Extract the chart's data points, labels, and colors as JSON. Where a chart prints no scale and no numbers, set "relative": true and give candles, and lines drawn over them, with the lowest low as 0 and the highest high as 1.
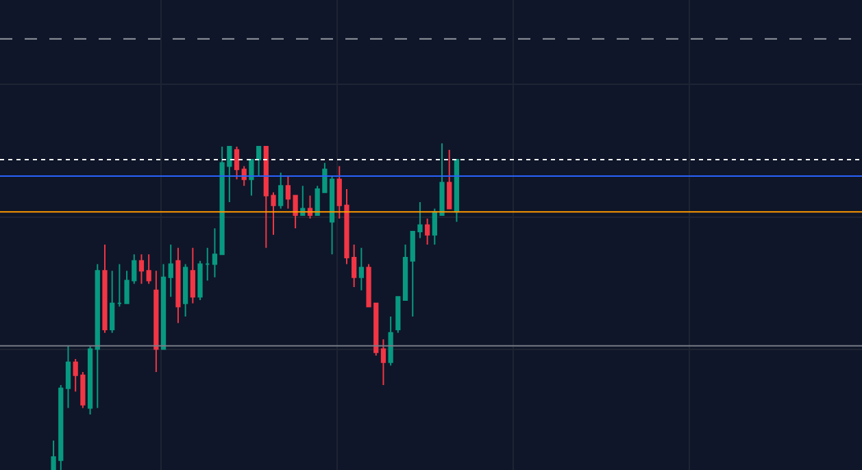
{
  "chart_data": {
    "type": "candlestick",
    "relative": true,
    "grid": true,
    "legend": false,
    "tick_labels": false,
    "categories": [
      null,
      null,
      null,
      null,
      null,
      null,
      null,
      null,
      null,
      null,
      null,
      null,
      null,
      null,
      null,
      null,
      null,
      null,
      null,
      null,
      null,
      null,
      null,
      null,
      null,
      null,
      null,
      null,
      null,
      null,
      null,
      null,
      null,
      null,
      null,
      null,
      null,
      null,
      null,
      null,
      null,
      null,
      null,
      null,
      null,
      null,
      null,
      null,
      null,
      null,
      null,
      null,
      null,
      null,
      null,
      null
    ],
    "ohlc": [
      [
        0,
        0.09,
        0,
        0.04
      ],
      [
        0.03,
        0.26,
        0,
        0.25
      ],
      [
        0.25,
        0.38,
        0.19,
        0.33
      ],
      [
        0.33,
        0.34,
        0.24,
        0.29
      ],
      [
        0.29,
        0.3,
        0.19,
        0.2
      ],
      [
        0.19,
        0.38,
        0.17,
        0.37
      ],
      [
        0.37,
        0.63,
        0.19,
        0.61
      ],
      [
        0.61,
        0.69,
        0.42,
        0.43
      ],
      [
        0.43,
        0.61,
        0.42,
        0.51
      ],
      [
        0.51,
        0.63,
        0.5,
        0.51
      ],
      [
        0.51,
        0.61,
        0.51,
        0.58
      ],
      [
        0.58,
        0.66,
        0.57,
        0.64
      ],
      [
        0.64,
        0.66,
        0.57,
        0.61
      ],
      [
        0.61,
        0.66,
        0.57,
        0.58
      ],
      [
        0.55,
        0.61,
        0.3,
        0.37
      ],
      [
        0.37,
        0.63,
        0.37,
        0.59
      ],
      [
        0.59,
        0.69,
        0.53,
        0.63
      ],
      [
        0.64,
        0.68,
        0.45,
        0.5
      ],
      [
        0.51,
        0.63,
        0.47,
        0.62
      ],
      [
        0.61,
        0.68,
        0.51,
        0.53
      ],
      [
        0.53,
        0.64,
        0.52,
        0.63
      ],
      [
        0.63,
        0.68,
        0.58,
        0.63
      ],
      [
        0.63,
        0.74,
        0.59,
        0.66
      ],
      [
        0.66,
        0.99,
        0.66,
        0.94
      ],
      [
        0.93,
        0.99,
        0.82,
        0.99
      ],
      [
        0.98,
        0.99,
        0.89,
        0.92
      ],
      [
        0.92,
        0.93,
        0.87,
        0.89
      ],
      [
        0.89,
        0.95,
        0.84,
        0.95
      ],
      [
        0.95,
        0.99,
        0.9,
        0.99
      ],
      [
        0.99,
        0.99,
        0.68,
        0.84
      ],
      [
        0.84,
        0.85,
        0.72,
        0.81
      ],
      [
        0.81,
        0.91,
        0.8,
        0.87
      ],
      [
        0.87,
        0.9,
        0.8,
        0.83
      ],
      [
        0.84,
        0.84,
        0.74,
        0.78
      ],
      [
        0.78,
        0.87,
        0.78,
        0.8
      ],
      [
        0.8,
        0.84,
        0.77,
        0.78
      ],
      [
        0.78,
        0.87,
        0.78,
        0.86
      ],
      [
        0.85,
        0.94,
        0.85,
        0.92
      ],
      [
        0.76,
        0.9,
        0.66,
        0.89
      ],
      [
        0.89,
        0.93,
        0.77,
        0.81
      ],
      [
        0.81,
        0.86,
        0.63,
        0.65
      ],
      [
        0.65,
        0.69,
        0.56,
        0.59
      ],
      [
        0.59,
        0.68,
        0.55,
        0.62
      ],
      [
        0.62,
        0.63,
        0.5,
        0.5
      ],
      [
        0.51,
        0.51,
        0.35,
        0.36
      ],
      [
        0.37,
        0.4,
        0.26,
        0.33
      ],
      [
        0.33,
        0.47,
        0.32,
        0.42
      ],
      [
        0.43,
        0.53,
        0.42,
        0.53
      ],
      [
        0.52,
        0.69,
        0.52,
        0.65
      ],
      [
        0.64,
        0.73,
        0.47,
        0.73
      ],
      [
        0.73,
        0.82,
        0.71,
        0.75
      ],
      [
        0.75,
        0.77,
        0.69,
        0.72
      ],
      [
        0.72,
        0.8,
        0.69,
        0.79
      ],
      [
        0.78,
        1,
        0.78,
        0.88
      ],
      [
        0.88,
        0.98,
        0.8,
        0.8
      ],
      [
        0.79,
        0.95,
        0.76,
        0.95
      ]
    ],
    "ref_lines": [
      {
        "axis": "y",
        "value": 1.32,
        "color": "#9598a1",
        "line_style": "dashed"
      },
      {
        "axis": "y",
        "value": 0.95,
        "color": "#ffffff",
        "line_style": "dotted"
      },
      {
        "axis": "y",
        "value": 0.9,
        "color": "#2962ff",
        "line_style": "solid"
      },
      {
        "axis": "y",
        "value": 0.79,
        "color": "#ff9800",
        "line_style": "solid"
      },
      {
        "axis": "y",
        "value": 0.38,
        "color": "#787b86",
        "line_style": "solid"
      }
    ]
  }
}
